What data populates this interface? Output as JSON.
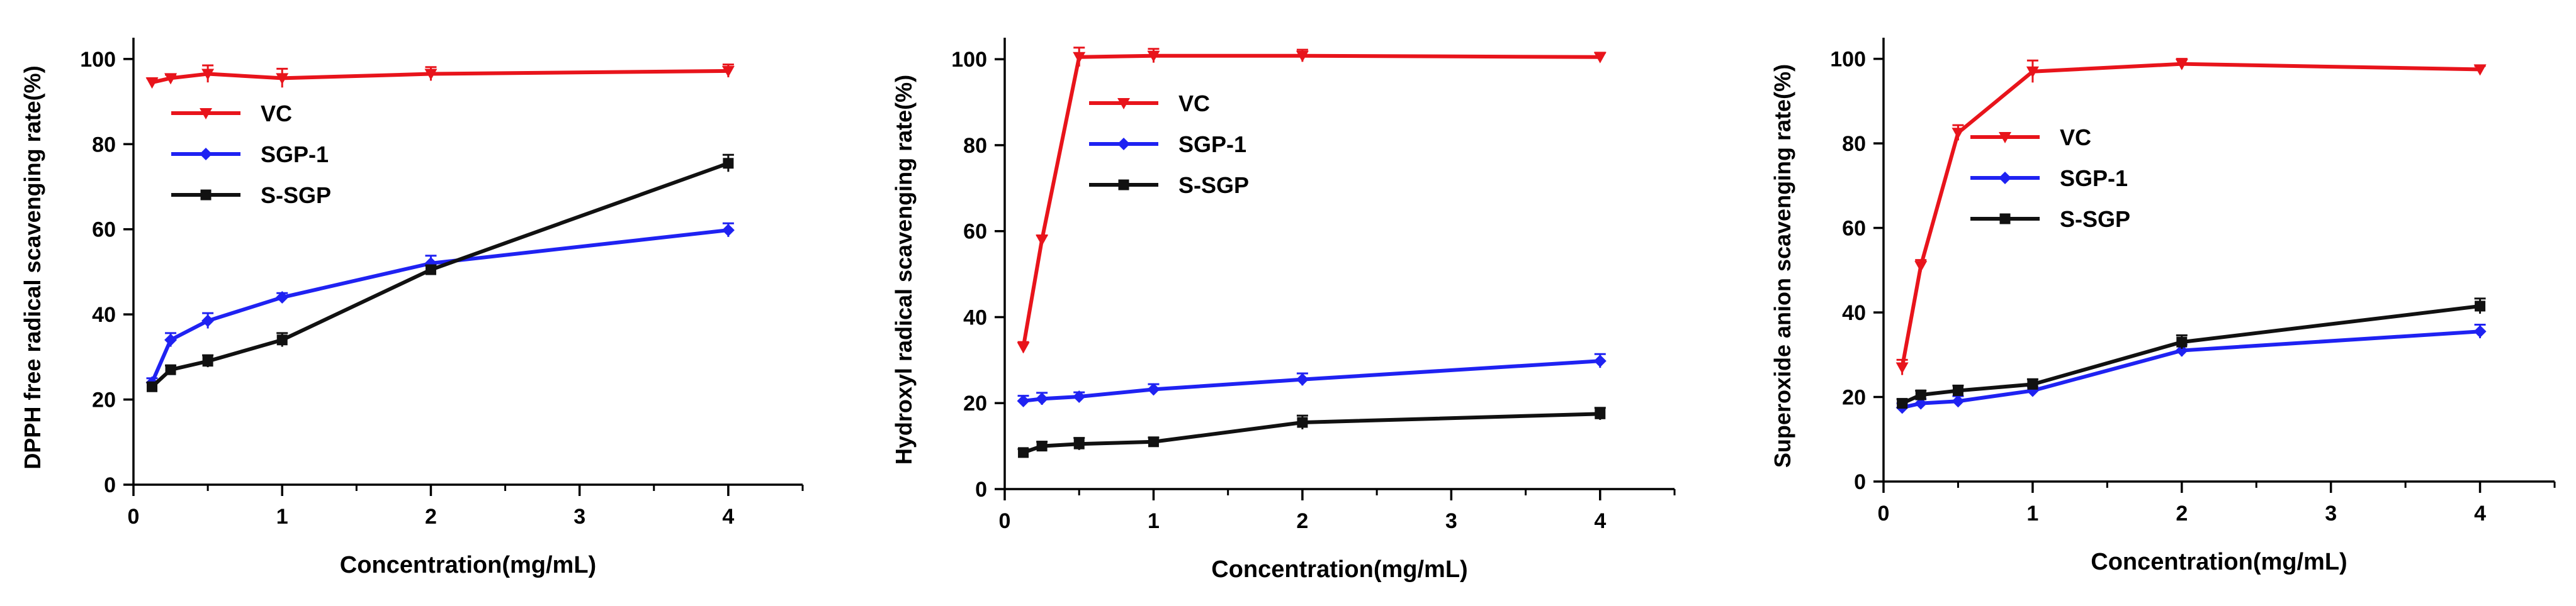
{
  "chart_data": [
    {
      "type": "line",
      "xlabel": "Concentration(mg/mL)",
      "ylabel": "DPPH free radical scavenging rate(%)",
      "xlim": [
        0,
        4.5
      ],
      "ylim": [
        0,
        105
      ],
      "xticks": [
        0,
        1,
        2,
        3,
        4
      ],
      "yticks": [
        0,
        20,
        40,
        60,
        80,
        100
      ],
      "x": [
        0.125,
        0.25,
        0.5,
        1,
        2,
        4
      ],
      "legend_position": "top-left",
      "series": [
        {
          "name": "VC",
          "color": "#e8141b",
          "marker": "triangle-down",
          "values": [
            94.5,
            95.5,
            96.5,
            95.5,
            96.5,
            97.2
          ],
          "errors": [
            1.0,
            0.8,
            2.0,
            2.2,
            1.6,
            1.5
          ]
        },
        {
          "name": "SGP-1",
          "color": "#1f22f2",
          "marker": "diamond",
          "values": [
            24.0,
            34.0,
            38.5,
            44.0,
            52.0,
            59.8
          ],
          "errors": [
            1.0,
            1.6,
            1.8,
            1.0,
            1.8,
            1.6
          ]
        },
        {
          "name": "S-SGP",
          "color": "#111111",
          "marker": "square",
          "values": [
            23.0,
            27.0,
            29.0,
            34.0,
            50.5,
            75.5
          ],
          "errors": [
            1.0,
            1.0,
            1.4,
            1.6,
            1.0,
            2.0
          ]
        }
      ]
    },
    {
      "type": "line",
      "xlabel": "Concentration(mg/mL)",
      "ylabel": "Hydroxyl radical scavenging rate(%)",
      "xlim": [
        0,
        4.5
      ],
      "ylim": [
        0,
        105
      ],
      "xticks": [
        0,
        1,
        2,
        3,
        4
      ],
      "yticks": [
        0,
        20,
        40,
        60,
        80,
        100
      ],
      "x": [
        0.125,
        0.25,
        0.5,
        1,
        2,
        4
      ],
      "legend_position": "top-right",
      "series": [
        {
          "name": "VC",
          "color": "#e8141b",
          "marker": "triangle-down",
          "values": [
            33.0,
            58.0,
            100.5,
            100.8,
            100.8,
            100.5
          ],
          "errors": [
            1.2,
            1.0,
            2.2,
            1.6,
            1.4,
            1.0
          ]
        },
        {
          "name": "SGP-1",
          "color": "#1f22f2",
          "marker": "diamond",
          "values": [
            20.5,
            21.0,
            21.5,
            23.2,
            25.5,
            29.8
          ],
          "errors": [
            1.2,
            1.4,
            1.0,
            1.2,
            1.4,
            1.6
          ]
        },
        {
          "name": "S-SGP",
          "color": "#111111",
          "marker": "square",
          "values": [
            8.5,
            10.0,
            10.5,
            11.0,
            15.5,
            17.5
          ],
          "errors": [
            0.8,
            1.0,
            1.4,
            1.0,
            1.6,
            1.4
          ]
        }
      ]
    },
    {
      "type": "line",
      "xlabel": "Concentration(mg/mL)",
      "ylabel": "Superoxide anion scavenging rate(%)",
      "xlim": [
        0,
        4.5
      ],
      "ylim": [
        0,
        105
      ],
      "xticks": [
        0,
        1,
        2,
        3,
        4
      ],
      "yticks": [
        0,
        20,
        40,
        60,
        80,
        100
      ],
      "x": [
        0.125,
        0.25,
        0.5,
        1,
        2,
        4
      ],
      "legend_position": "top-right",
      "series": [
        {
          "name": "VC",
          "color": "#e8141b",
          "marker": "triangle-down",
          "values": [
            27.0,
            51.0,
            82.5,
            97.0,
            98.8,
            97.5
          ],
          "errors": [
            1.8,
            1.4,
            1.8,
            2.6,
            1.2,
            0.8
          ]
        },
        {
          "name": "SGP-1",
          "color": "#1f22f2",
          "marker": "diamond",
          "values": [
            17.5,
            18.5,
            19.0,
            21.5,
            31.0,
            35.5
          ],
          "errors": [
            1.0,
            1.0,
            1.2,
            1.0,
            1.4,
            1.6
          ]
        },
        {
          "name": "S-SGP",
          "color": "#111111",
          "marker": "square",
          "values": [
            18.5,
            20.5,
            21.5,
            23.0,
            33.0,
            41.5
          ],
          "errors": [
            1.0,
            1.0,
            1.2,
            1.2,
            1.6,
            1.8
          ]
        }
      ]
    }
  ]
}
